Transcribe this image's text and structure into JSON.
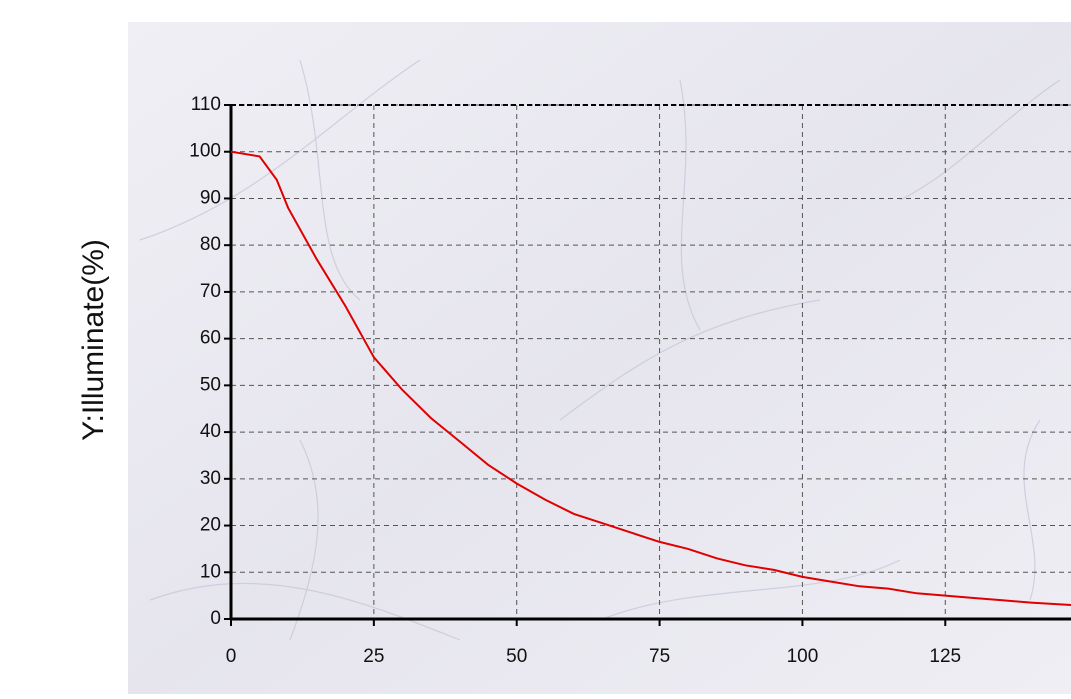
{
  "chart_data": {
    "type": "line",
    "y_label": "Y:Illuminate(%)",
    "x": [
      0,
      5,
      8,
      10,
      15,
      20,
      25,
      30,
      35,
      40,
      45,
      50,
      55,
      60,
      65,
      70,
      75,
      80,
      85,
      90,
      95,
      100,
      105,
      110,
      115,
      120,
      125,
      130,
      135,
      140,
      147
    ],
    "values": [
      100,
      99,
      94,
      88,
      77,
      67,
      56,
      49,
      43,
      38,
      33,
      29,
      25.5,
      22.5,
      20.5,
      18.5,
      16.5,
      15,
      13,
      11.5,
      10.5,
      9,
      8,
      7,
      6.5,
      5.5,
      5,
      4.5,
      4,
      3.5,
      3
    ],
    "color": "#e00000",
    "xlim": [
      0,
      147
    ],
    "ylim": [
      0,
      110
    ],
    "xticks": [
      0,
      25,
      50,
      75,
      100,
      125
    ],
    "yticks": [
      0,
      10,
      20,
      30,
      40,
      50,
      60,
      70,
      80,
      90,
      100,
      110
    ],
    "grid": true
  }
}
